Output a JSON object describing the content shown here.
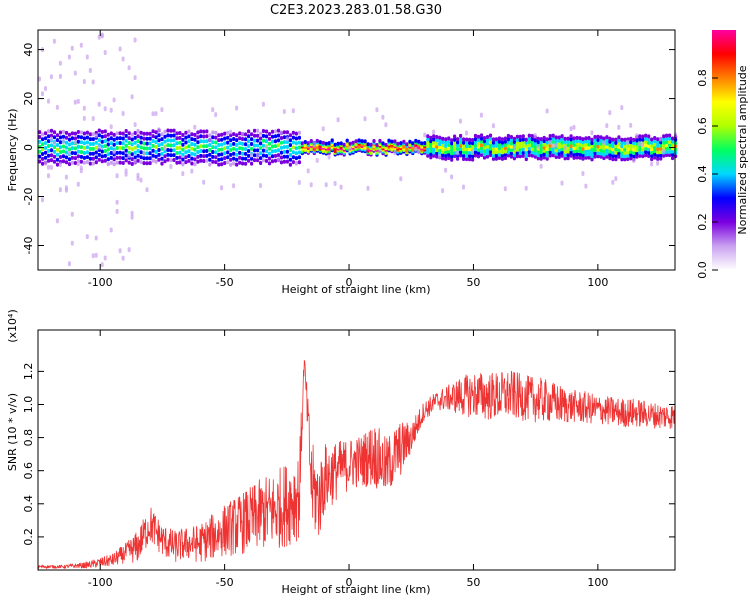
{
  "figure": {
    "title": "C2E3.2023.283.01.58.G30"
  },
  "chart_data": [
    {
      "type": "heatmap",
      "xlabel": "Height of straight line (km)",
      "ylabel": "Frequency (Hz)",
      "xlim": [
        -125,
        131
      ],
      "ylim": [
        -50,
        48
      ],
      "xticks": [
        -100,
        -50,
        0,
        50,
        100
      ],
      "yticks": [
        -40,
        -20,
        0,
        20,
        40
      ],
      "colorbar": {
        "label": "Normalized spectral amplitude",
        "range": [
          0,
          1
        ],
        "ticks": [
          0.0,
          0.2,
          0.4,
          0.6,
          0.8
        ],
        "colormap": [
          "#ffffff",
          "#c9a0f0",
          "#7a00e0",
          "#0000ff",
          "#00d8ff",
          "#00ff60",
          "#b0ff00",
          "#ffff00",
          "#ff8000",
          "#ff0000",
          "#ff00a0"
        ]
      },
      "ridge": {
        "center_hz": 0,
        "segments": [
          {
            "x_from": -125,
            "x_to": -20,
            "half_width_hz": 6,
            "peak_amplitude": 0.45
          },
          {
            "x_from": -20,
            "x_to": 30,
            "half_width_hz": 2,
            "peak_amplitude": 0.9
          },
          {
            "x_from": 30,
            "x_to": 131,
            "half_width_hz": 4,
            "peak_amplitude": 0.6
          }
        ]
      }
    },
    {
      "type": "line",
      "xlabel": "Height of straight line (km)",
      "ylabel": "SNR (10 * v/v)",
      "scale_label": "(x10⁴)",
      "xlim": [
        -125,
        131
      ],
      "ylim": [
        0,
        1.45
      ],
      "xticks": [
        -100,
        -50,
        0,
        50,
        100
      ],
      "yticks": [
        0.2,
        0.4,
        0.6,
        0.8,
        1.0,
        1.2
      ],
      "line_color": "#ee3333",
      "series": [
        {
          "x": [
            -125,
            -115,
            -105,
            -95,
            -90,
            -85,
            -80,
            -75,
            -70,
            -65,
            -60,
            -55,
            -50,
            -45,
            -40,
            -35,
            -30,
            -25,
            -20,
            -18,
            -15,
            -12,
            -10,
            -5,
            0,
            5,
            10,
            15,
            20,
            25,
            30,
            35,
            40,
            45,
            50,
            55,
            60,
            65,
            70,
            75,
            80,
            85,
            90,
            95,
            100,
            105,
            110,
            115,
            120,
            125,
            131
          ],
          "y": [
            0.02,
            0.02,
            0.03,
            0.06,
            0.1,
            0.14,
            0.28,
            0.18,
            0.14,
            0.16,
            0.16,
            0.2,
            0.24,
            0.27,
            0.3,
            0.34,
            0.36,
            0.4,
            0.46,
            1.27,
            0.5,
            0.42,
            0.55,
            0.6,
            0.64,
            0.66,
            0.7,
            0.62,
            0.72,
            0.8,
            0.96,
            1.02,
            1.04,
            1.05,
            1.06,
            1.05,
            1.05,
            1.06,
            1.04,
            1.03,
            1.02,
            1.0,
            0.99,
            0.98,
            0.97,
            0.96,
            0.95,
            0.95,
            0.94,
            0.93,
            0.93
          ],
          "jitter": [
            0.01,
            0.01,
            0.02,
            0.04,
            0.06,
            0.1,
            0.12,
            0.1,
            0.1,
            0.1,
            0.12,
            0.14,
            0.16,
            0.18,
            0.2,
            0.22,
            0.24,
            0.26,
            0.28,
            0.05,
            0.28,
            0.25,
            0.22,
            0.18,
            0.16,
            0.16,
            0.2,
            0.18,
            0.18,
            0.1,
            0.06,
            0.06,
            0.08,
            0.12,
            0.14,
            0.15,
            0.15,
            0.15,
            0.14,
            0.14,
            0.13,
            0.12,
            0.1,
            0.1,
            0.09,
            0.09,
            0.09,
            0.09,
            0.08,
            0.08,
            0.08
          ]
        }
      ]
    }
  ]
}
